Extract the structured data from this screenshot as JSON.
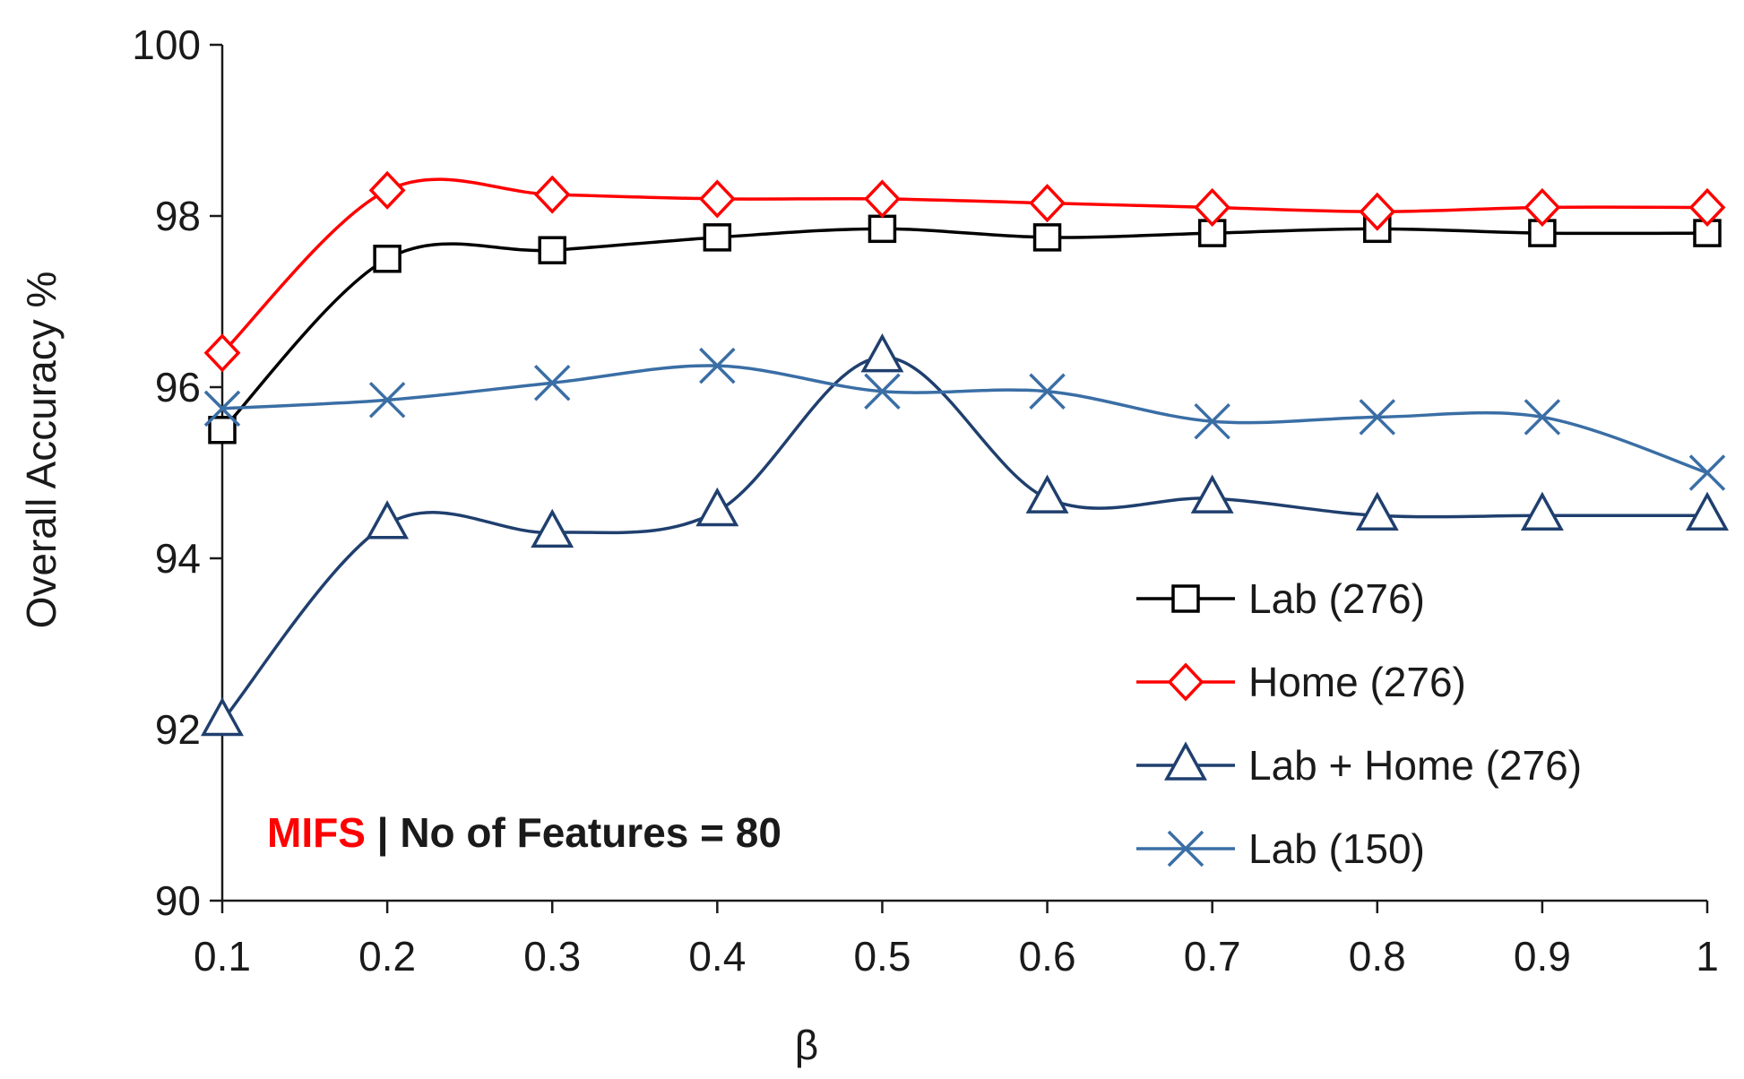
{
  "chart_data": {
    "type": "line",
    "x": [
      0.1,
      0.2,
      0.3,
      0.4,
      0.5,
      0.6,
      0.7,
      0.8,
      0.9,
      1
    ],
    "x_tick_labels": [
      "0.1",
      "0.2",
      "0.3",
      "0.4",
      "0.5",
      "0.6",
      "0.7",
      "0.8",
      "0.9",
      "1"
    ],
    "xlabel": "β",
    "ylabel": "Overall Accuracy %",
    "ylim": [
      90,
      100
    ],
    "y_ticks": [
      90,
      92,
      94,
      96,
      98,
      100
    ],
    "y_tick_labels": [
      "90",
      "92",
      "94",
      "96",
      "98",
      "100"
    ],
    "grid": false,
    "legend_position": "lower-right",
    "annotation": {
      "method": "MIFS",
      "separator": " | ",
      "detail": "No of Features = 80",
      "method_color": "#ff0000",
      "detail_color": "#1a1a1a"
    },
    "series": [
      {
        "name": "Lab (276)",
        "marker": "square",
        "color": "#000000",
        "values": [
          95.5,
          97.5,
          97.6,
          97.75,
          97.85,
          97.75,
          97.8,
          97.85,
          97.8,
          97.8
        ]
      },
      {
        "name": "Home (276)",
        "marker": "diamond",
        "color": "#ff0000",
        "values": [
          96.4,
          98.3,
          98.25,
          98.2,
          98.2,
          98.15,
          98.1,
          98.05,
          98.1,
          98.1
        ]
      },
      {
        "name": "Lab + Home (276)",
        "marker": "triangle",
        "color": "#1f3f6e",
        "values": [
          92.1,
          94.4,
          94.3,
          94.55,
          96.35,
          94.7,
          94.7,
          94.5,
          94.5,
          94.5
        ]
      },
      {
        "name": "Lab (150)",
        "marker": "x",
        "color": "#3a6ea5",
        "values": [
          95.75,
          95.85,
          96.05,
          96.25,
          95.95,
          95.95,
          95.6,
          95.65,
          95.65,
          95.0
        ]
      }
    ]
  }
}
